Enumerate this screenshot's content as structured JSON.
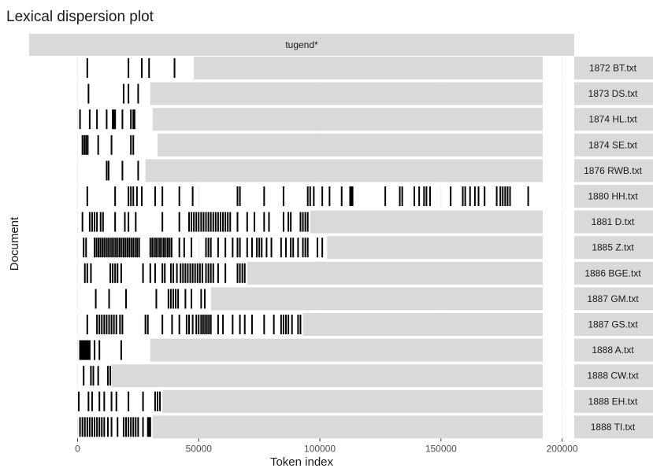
{
  "chart_data": {
    "type": "lexical-dispersion",
    "title": "Lexical dispersion plot",
    "term": "tugend*",
    "xlabel": "Token index",
    "ylabel": "Document",
    "xlim": [
      -20000,
      205000
    ],
    "xticks": [
      0,
      50000,
      100000,
      150000,
      200000
    ],
    "grid": true,
    "documents": [
      {
        "name": "1872 BT.txt",
        "length": 48000,
        "hits": [
          4000,
          21000,
          26500,
          29500,
          40000
        ]
      },
      {
        "name": "1873 DS.txt",
        "length": 30000,
        "hits": [
          4500,
          19000,
          21000,
          25000
        ]
      },
      {
        "name": "1874 HL.txt",
        "length": 31000,
        "hits": [
          1000,
          5000,
          8000,
          12000,
          14500,
          15000,
          15500,
          18500,
          22000,
          23000,
          23500
        ]
      },
      {
        "name": "1874 SE.txt",
        "length": 33000,
        "hits": [
          2000,
          2800,
          3500,
          4200,
          8500,
          14000,
          22000,
          23000
        ]
      },
      {
        "name": "1876 RWB.txt",
        "length": 28000,
        "hits": [
          12000,
          12800,
          18500,
          25000
        ]
      },
      {
        "name": "1880 HH.txt",
        "length": 192000,
        "hits": [
          4000,
          15500,
          21000,
          22000,
          23000,
          24500,
          26500,
          32000,
          35000,
          42000,
          47500,
          66000,
          67000,
          77000,
          85000,
          95000,
          96000,
          97500,
          101000,
          104000,
          109000,
          112500,
          113000,
          113500,
          127000,
          133000,
          134000,
          139000,
          141000,
          143000,
          144000,
          145500,
          154000,
          159000,
          160000,
          162000,
          164000,
          165500,
          168000,
          173000,
          174500,
          175500,
          176500,
          177500,
          178500,
          186000
        ]
      },
      {
        "name": "1881 D.txt",
        "length": 96000,
        "hits": [
          2000,
          5000,
          6000,
          7000,
          8000,
          9500,
          10500,
          15500,
          19500,
          21000,
          24000,
          35000,
          42000,
          46000,
          47000,
          48000,
          49000,
          50000,
          51000,
          52000,
          53000,
          54000,
          55000,
          56000,
          57000,
          58000,
          59000,
          60000,
          61000,
          62000,
          63000,
          66000,
          70000,
          73000,
          77000,
          79000,
          85000,
          87000,
          88000,
          92000,
          93000,
          94000,
          95000
        ]
      },
      {
        "name": "1885 Z.txt",
        "length": 103000,
        "hits": [
          2500,
          3500,
          7000,
          7800,
          8600,
          9400,
          10200,
          11000,
          11800,
          12600,
          13400,
          14200,
          15000,
          15800,
          16600,
          17400,
          18200,
          19000,
          19800,
          20600,
          21400,
          22200,
          23000,
          23800,
          24600,
          25400,
          30000,
          30800,
          31600,
          32400,
          33200,
          34000,
          34800,
          35600,
          36400,
          37200,
          38000,
          38800,
          42000,
          44000,
          47000,
          53000,
          54000,
          55000,
          58000,
          61000,
          64000,
          66000,
          67000,
          70000,
          72000,
          74000,
          75000,
          76000,
          78000,
          80000,
          84000,
          86000,
          88000,
          89000,
          91000,
          93000,
          94000,
          95000,
          99000,
          101000
        ]
      },
      {
        "name": "1886 BGE.txt",
        "length": 70000,
        "hits": [
          3000,
          4000,
          5500,
          13500,
          14500,
          15500,
          16500,
          18000,
          27000,
          30000,
          32000,
          35000,
          36000,
          38500,
          39500,
          41000,
          42500,
          43500,
          44500,
          45500,
          46500,
          47500,
          48500,
          49500,
          50500,
          51500,
          53000,
          54000,
          55000,
          56000,
          58000,
          61000,
          66000,
          67000,
          68000,
          69000
        ]
      },
      {
        "name": "1887 GM.txt",
        "length": 55000,
        "hits": [
          7500,
          13000,
          20000,
          32500,
          37500,
          38500,
          39500,
          40500,
          41500,
          44500,
          47000,
          51000,
          52500
        ]
      },
      {
        "name": "1887 GS.txt",
        "length": 93000,
        "hits": [
          4000,
          8000,
          9000,
          10000,
          11000,
          12000,
          13000,
          14000,
          15000,
          16000,
          17500,
          18500,
          28000,
          29000,
          35000,
          39000,
          42000,
          45000,
          46000,
          47500,
          49000,
          50000,
          51000,
          51800,
          52600,
          53400,
          54200,
          55000,
          58000,
          60000,
          64000,
          67000,
          69000,
          72000,
          77000,
          81000,
          84000,
          85000,
          86000,
          87000,
          88500,
          91000,
          92000
        ]
      },
      {
        "name": "1888 A.txt",
        "length": 30000,
        "hits": [
          1000,
          1500,
          2000,
          2500,
          3000,
          3500,
          4000,
          4500,
          5000,
          7000,
          9000,
          18000
        ]
      },
      {
        "name": "1888 CW.txt",
        "length": 14000,
        "hits": [
          2500,
          5500,
          6500,
          8500,
          12500,
          13500
        ]
      },
      {
        "name": "1888 EH.txt",
        "length": 35000,
        "hits": [
          500,
          4500,
          6000,
          9000,
          11000,
          14000,
          16000,
          21000,
          27000,
          32000,
          33000,
          34000
        ]
      },
      {
        "name": "1888 TI.txt",
        "length": 31000,
        "hits": [
          1000,
          2000,
          3000,
          4000,
          5000,
          6000,
          7000,
          8000,
          9000,
          10000,
          11000,
          12500,
          14000,
          16500,
          19000,
          20000,
          21000,
          22000,
          23000,
          24000,
          25000,
          27000,
          29000,
          29500,
          30000
        ]
      }
    ]
  }
}
